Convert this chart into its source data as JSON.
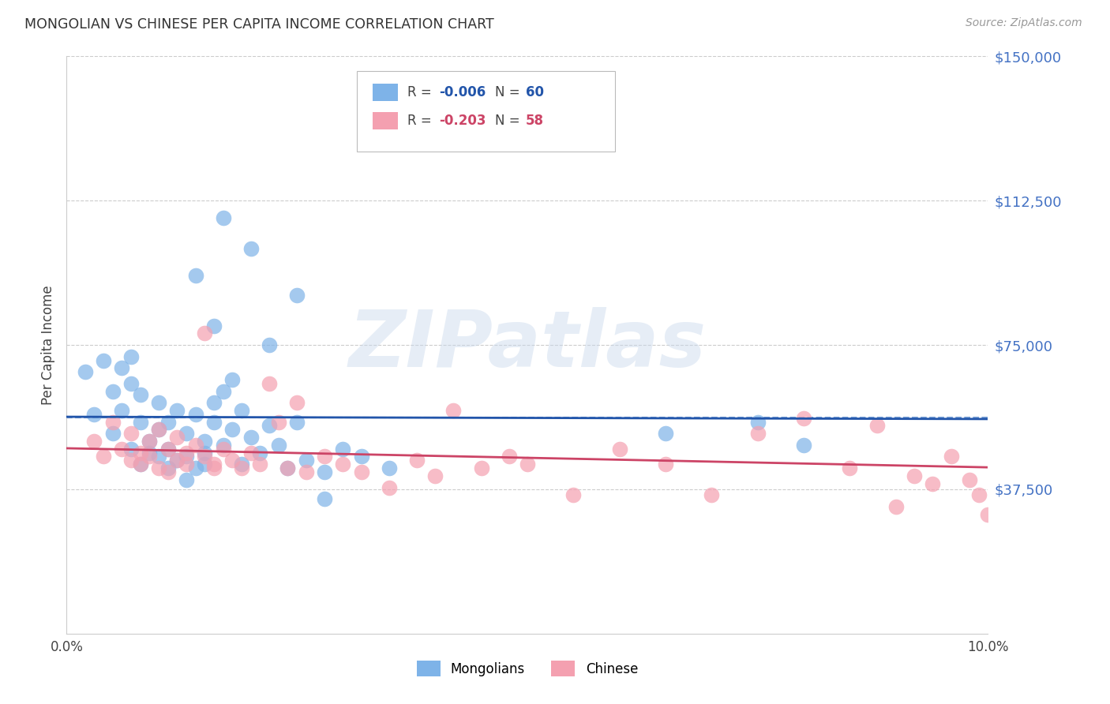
{
  "title": "MONGOLIAN VS CHINESE PER CAPITA INCOME CORRELATION CHART",
  "source": "Source: ZipAtlas.com",
  "ylabel": "Per Capita Income",
  "y_label_color": "#4472C4",
  "mongolian_color": "#7EB3E8",
  "mongolian_line_color": "#2255AA",
  "mongolian_dash_color": "#5588CC",
  "chinese_color": "#F4A0B0",
  "chinese_line_color": "#CC4466",
  "watermark_text": "ZIPatlas",
  "watermark_color": "#C8D8EC",
  "background_color": "#ffffff",
  "grid_color": "#cccccc",
  "xlim": [
    0.0,
    0.1
  ],
  "ylim": [
    0,
    150000
  ],
  "ytick_vals": [
    37500,
    75000,
    112500,
    150000
  ],
  "mongolian_x": [
    0.002,
    0.003,
    0.004,
    0.005,
    0.005,
    0.006,
    0.006,
    0.007,
    0.007,
    0.007,
    0.008,
    0.008,
    0.008,
    0.009,
    0.009,
    0.01,
    0.01,
    0.01,
    0.011,
    0.011,
    0.011,
    0.012,
    0.012,
    0.013,
    0.013,
    0.013,
    0.014,
    0.014,
    0.015,
    0.015,
    0.015,
    0.016,
    0.016,
    0.017,
    0.017,
    0.018,
    0.018,
    0.019,
    0.019,
    0.02,
    0.021,
    0.022,
    0.023,
    0.024,
    0.025,
    0.026,
    0.028,
    0.03,
    0.032,
    0.035,
    0.02,
    0.025,
    0.017,
    0.014,
    0.016,
    0.022,
    0.028,
    0.065,
    0.075,
    0.08
  ],
  "mongolian_y": [
    68000,
    57000,
    71000,
    63000,
    52000,
    69000,
    58000,
    72000,
    65000,
    48000,
    55000,
    44000,
    62000,
    50000,
    47000,
    53000,
    46000,
    60000,
    55000,
    43000,
    48000,
    58000,
    45000,
    52000,
    46000,
    40000,
    57000,
    43000,
    50000,
    44000,
    47000,
    60000,
    55000,
    63000,
    49000,
    66000,
    53000,
    58000,
    44000,
    51000,
    47000,
    54000,
    49000,
    43000,
    55000,
    45000,
    42000,
    48000,
    46000,
    43000,
    100000,
    88000,
    108000,
    93000,
    80000,
    75000,
    35000,
    52000,
    55000,
    49000
  ],
  "chinese_x": [
    0.003,
    0.004,
    0.005,
    0.006,
    0.007,
    0.007,
    0.008,
    0.008,
    0.009,
    0.009,
    0.01,
    0.01,
    0.011,
    0.011,
    0.012,
    0.012,
    0.013,
    0.013,
    0.014,
    0.015,
    0.015,
    0.016,
    0.016,
    0.017,
    0.018,
    0.019,
    0.02,
    0.021,
    0.022,
    0.023,
    0.024,
    0.025,
    0.026,
    0.028,
    0.03,
    0.032,
    0.035,
    0.038,
    0.04,
    0.042,
    0.045,
    0.048,
    0.05,
    0.055,
    0.06,
    0.065,
    0.07,
    0.075,
    0.08,
    0.085,
    0.088,
    0.09,
    0.092,
    0.094,
    0.096,
    0.098,
    0.099,
    0.1
  ],
  "chinese_y": [
    50000,
    46000,
    55000,
    48000,
    45000,
    52000,
    47000,
    44000,
    50000,
    46000,
    53000,
    43000,
    48000,
    42000,
    51000,
    45000,
    47000,
    44000,
    49000,
    78000,
    46000,
    44000,
    43000,
    48000,
    45000,
    43000,
    47000,
    44000,
    65000,
    55000,
    43000,
    60000,
    42000,
    46000,
    44000,
    42000,
    38000,
    45000,
    41000,
    58000,
    43000,
    46000,
    44000,
    36000,
    48000,
    44000,
    36000,
    52000,
    56000,
    43000,
    54000,
    33000,
    41000,
    39000,
    46000,
    40000,
    36000,
    31000
  ],
  "legend_R1": "-0.006",
  "legend_N1": "60",
  "legend_R2": "-0.203",
  "legend_N2": "58",
  "legend_label1": "Mongolians",
  "legend_label2": "Chinese"
}
